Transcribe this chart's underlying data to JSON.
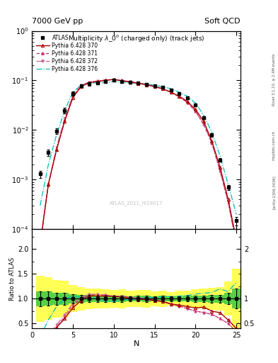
{
  "title": "Multiplicity $\\lambda\\_0^0$ (charged only) (track jets)",
  "header_left": "7000 GeV pp",
  "header_right": "Soft QCD",
  "ylabel_ratio": "Ratio to ATLAS",
  "xlabel": "N",
  "rivet_label": "Rivet 3.1.10, ≥ 2.4M events",
  "arxiv_label": "[arXiv:1306.3436]",
  "mcplots_label": "mcplots.cern.ch",
  "atlas_ref": "ATLAS_2011_I919017",
  "atlas_data_x": [
    1,
    2,
    3,
    4,
    5,
    6,
    7,
    8,
    9,
    10,
    11,
    12,
    13,
    14,
    15,
    16,
    17,
    18,
    19,
    20,
    21,
    22,
    23,
    24,
    25
  ],
  "atlas_data_y": [
    0.0013,
    0.0035,
    0.0095,
    0.025,
    0.055,
    0.078,
    0.085,
    0.09,
    0.095,
    0.1,
    0.095,
    0.092,
    0.088,
    0.083,
    0.078,
    0.072,
    0.065,
    0.055,
    0.045,
    0.032,
    0.018,
    0.008,
    0.0025,
    0.0007,
    0.00015
  ],
  "atlas_data_yerr": [
    0.0002,
    0.0005,
    0.0012,
    0.003,
    0.005,
    0.006,
    0.006,
    0.006,
    0.006,
    0.006,
    0.006,
    0.005,
    0.005,
    0.005,
    0.004,
    0.004,
    0.003,
    0.003,
    0.0025,
    0.002,
    0.0012,
    0.0006,
    0.0002,
    8e-05,
    3e-05
  ],
  "py370_x": [
    1,
    2,
    3,
    4,
    5,
    6,
    7,
    8,
    9,
    10,
    11,
    12,
    13,
    14,
    15,
    16,
    17,
    18,
    19,
    20,
    21,
    22,
    23,
    24,
    25
  ],
  "py370_y": [
    5e-05,
    0.0008,
    0.004,
    0.015,
    0.045,
    0.075,
    0.09,
    0.095,
    0.1,
    0.105,
    0.098,
    0.093,
    0.087,
    0.082,
    0.075,
    0.068,
    0.058,
    0.048,
    0.038,
    0.026,
    0.015,
    0.006,
    0.0018,
    0.0004,
    6e-05
  ],
  "py371_x": [
    1,
    2,
    3,
    4,
    5,
    6,
    7,
    8,
    9,
    10,
    11,
    12,
    13,
    14,
    15,
    16,
    17,
    18,
    19,
    20,
    21,
    22,
    23,
    24,
    25
  ],
  "py371_y": [
    5e-05,
    0.0008,
    0.004,
    0.016,
    0.048,
    0.078,
    0.092,
    0.097,
    0.102,
    0.105,
    0.1,
    0.095,
    0.089,
    0.083,
    0.076,
    0.068,
    0.058,
    0.047,
    0.036,
    0.024,
    0.013,
    0.0055,
    0.0015,
    0.00035,
    5e-05
  ],
  "py372_x": [
    1,
    2,
    3,
    4,
    5,
    6,
    7,
    8,
    9,
    10,
    11,
    12,
    13,
    14,
    15,
    16,
    17,
    18,
    19,
    20,
    21,
    22,
    23,
    24,
    25
  ],
  "py372_y": [
    5e-05,
    0.0008,
    0.0045,
    0.017,
    0.05,
    0.08,
    0.093,
    0.098,
    0.102,
    0.105,
    0.1,
    0.095,
    0.089,
    0.083,
    0.076,
    0.068,
    0.058,
    0.047,
    0.036,
    0.024,
    0.013,
    0.0055,
    0.0015,
    0.00035,
    5e-05
  ],
  "py6_x": [
    1,
    2,
    3,
    4,
    5,
    6,
    7,
    8,
    9,
    10,
    11,
    12,
    13,
    14,
    15,
    16,
    17,
    18,
    19,
    20,
    21,
    22,
    23,
    24,
    25
  ],
  "py6_y": [
    0.0003,
    0.002,
    0.008,
    0.025,
    0.058,
    0.08,
    0.088,
    0.09,
    0.09,
    0.095,
    0.093,
    0.09,
    0.088,
    0.085,
    0.08,
    0.075,
    0.068,
    0.058,
    0.048,
    0.035,
    0.02,
    0.009,
    0.003,
    0.0008,
    0.0002
  ],
  "color_370": "#aa0000",
  "color_371": "#cc3377",
  "color_372": "#cc6699",
  "color_py6": "#00bbbb",
  "color_atlas": "#000000",
  "ylim_main": [
    0.0001,
    1.0
  ],
  "ylim_ratio": [
    0.4,
    2.4
  ],
  "xlim": [
    0.5,
    25.5
  ]
}
